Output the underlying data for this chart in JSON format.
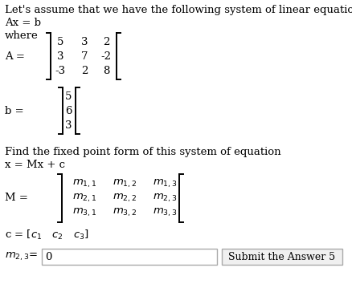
{
  "bg_color": "#ffffff",
  "text_color": "#000000",
  "figsize": [
    4.38,
    3.54
  ],
  "dpi": 100,
  "font_family": "DejaVu Serif",
  "font_size": 9.5,
  "small_font": 9.0,
  "lines_top": [
    "Let's assume that we have the following system of linear equations",
    "Ax = b",
    "where"
  ],
  "A_rows": [
    [
      "5",
      "3",
      "2"
    ],
    [
      "3",
      "7",
      "-2"
    ],
    [
      "-3",
      "2",
      "8"
    ]
  ],
  "b_values": [
    "5",
    "6",
    "3"
  ],
  "M_rows": [
    [
      "m_{1,1}",
      "m_{1,2}",
      "m_{1,3}"
    ],
    [
      "m_{2,1}",
      "m_{2,2}",
      "m_{2,3}"
    ],
    [
      "m_{3,1}",
      "m_{3,2}",
      "m_{3,3}"
    ]
  ],
  "input_value": "0",
  "submit_text": "Submit the Answer 5"
}
